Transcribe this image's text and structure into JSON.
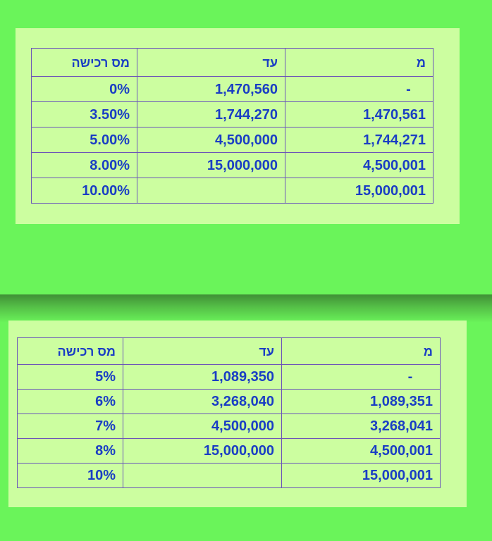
{
  "tables": [
    {
      "headers": [
        "מס רכישה",
        "עד",
        "מ"
      ],
      "rows": [
        [
          "0%",
          "1,470,560",
          "-"
        ],
        [
          "3.50%",
          "1,744,270",
          "1,470,561"
        ],
        [
          "5.00%",
          "4,500,000",
          "1,744,271"
        ],
        [
          "8.00%",
          "15,000,000",
          "4,500,001"
        ],
        [
          "10.00%",
          "",
          "15,000,001"
        ]
      ]
    },
    {
      "headers": [
        "מס רכישה",
        "עד",
        "מ"
      ],
      "rows": [
        [
          "5%",
          "1,089,350",
          "-"
        ],
        [
          "6%",
          "3,268,040",
          "1,089,351"
        ],
        [
          "7%",
          "4,500,000",
          "3,268,041"
        ],
        [
          "8%",
          "15,000,000",
          "4,500,001"
        ],
        [
          "10%",
          "",
          "15,000,001"
        ]
      ]
    }
  ],
  "colors": {
    "background": "#6af45a",
    "panel": "#ccfea0",
    "text": "#1a3ec4",
    "border": "#6a55b9"
  }
}
